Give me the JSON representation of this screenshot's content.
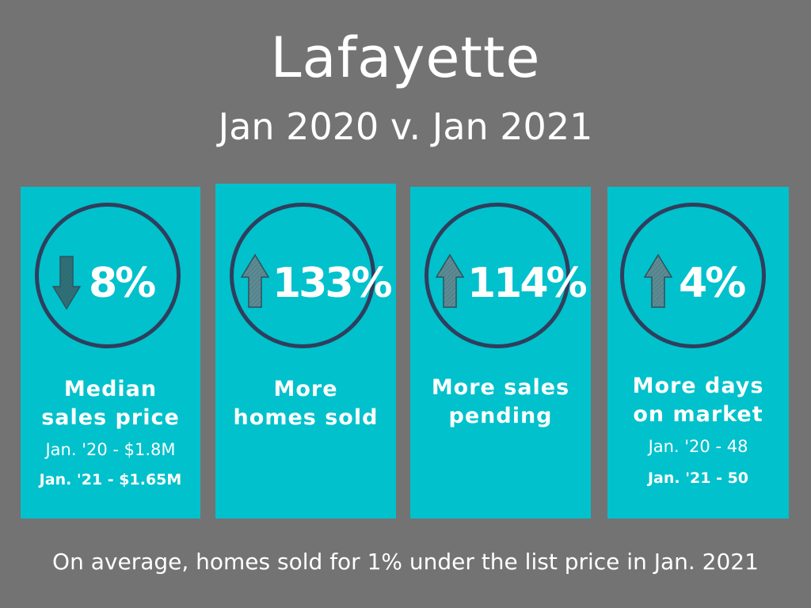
{
  "header": {
    "title": "Lafayette",
    "subtitle": "Jan 2020 v. Jan  2021"
  },
  "cards": [
    {
      "direction": "down",
      "icon": "arrow-down-icon",
      "percent": "8%",
      "label_line1": "Median",
      "label_line2": "sales price",
      "detail1": "Jan. '20 - $1.8M",
      "detail2": "Jan. '21 - $1.65M"
    },
    {
      "direction": "up",
      "icon": "arrow-up-icon",
      "percent": "133%",
      "label_line1": "More",
      "label_line2": "homes sold"
    },
    {
      "direction": "up",
      "icon": "arrow-up-icon",
      "percent": "114%",
      "label_line1": "More sales",
      "label_line2": "pending"
    },
    {
      "direction": "up",
      "icon": "arrow-up-icon",
      "percent": "4%",
      "label_line1": "More days",
      "label_line2": "on market",
      "detail1": "Jan. '20 - 48",
      "detail2": "Jan. '21 - 50"
    }
  ],
  "footer": {
    "note": "On average, homes sold for 1% under the list price in Jan. 2021"
  },
  "colors": {
    "background": "#737373",
    "card": "#00c1cc",
    "ring": "#2f3e5c",
    "arrow_down": "#2f6f77",
    "arrow_up": "#5e8b93",
    "text": "#ffffff"
  }
}
